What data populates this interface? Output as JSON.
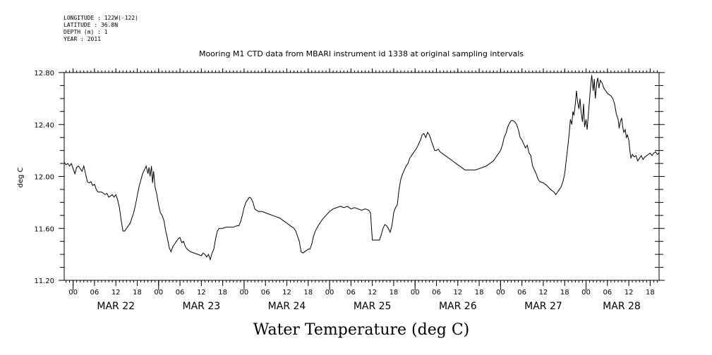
{
  "meta": {
    "longitude": "LONGITUDE : 122W(-122)",
    "latitude": "LATITUDE : 36.8N",
    "depth": "DEPTH (m) : 1",
    "year": "YEAR : 2011"
  },
  "chart_data": {
    "type": "line",
    "title": "Mooring M1 CTD data from MBARI instrument id 1338 at original sampling intervals",
    "bottom_title": "Water Temperature (deg C)",
    "ylabel": "deg C",
    "xlabel": "",
    "x_units": "hours since 2011-03-22 00:00",
    "xlim": [
      -2.5,
      164.5
    ],
    "ylim": [
      11.2,
      12.8
    ],
    "yticks": [
      11.2,
      11.6,
      12.0,
      12.4,
      12.8
    ],
    "ytick_labels": [
      "11.20",
      "11.60",
      "12.00",
      "12.40",
      "12.80"
    ],
    "xtick_hours": [
      0,
      6,
      12,
      18,
      24,
      30,
      36,
      42,
      48,
      54,
      60,
      66,
      72,
      78,
      84,
      90,
      96,
      102,
      108,
      114,
      120,
      126,
      132,
      138,
      144,
      150,
      156,
      162
    ],
    "xtick_labels": [
      "00",
      "06",
      "12",
      "18",
      "00",
      "06",
      "12",
      "18",
      "00",
      "06",
      "12",
      "18",
      "00",
      "06",
      "12",
      "18",
      "00",
      "06",
      "12",
      "18",
      "00",
      "06",
      "12",
      "18",
      "00",
      "06",
      "12",
      "18"
    ],
    "days": [
      {
        "label": "MAR 22",
        "hour": 12
      },
      {
        "label": "MAR 23",
        "hour": 36
      },
      {
        "label": "MAR 24",
        "hour": 60
      },
      {
        "label": "MAR 25",
        "hour": 84
      },
      {
        "label": "MAR 26",
        "hour": 108
      },
      {
        "label": "MAR 27",
        "hour": 132
      },
      {
        "label": "MAR 28",
        "hour": 154
      }
    ],
    "series": [
      {
        "color": "#000000",
        "points": [
          [
            -2.5,
            12.11
          ],
          [
            -2,
            12.09
          ],
          [
            -1.5,
            12.1
          ],
          [
            -1,
            12.08
          ],
          [
            -0.5,
            12.1
          ],
          [
            0,
            12.06
          ],
          [
            0.5,
            12.02
          ],
          [
            1,
            12.07
          ],
          [
            1.5,
            12.08
          ],
          [
            2,
            12.06
          ],
          [
            2.5,
            12.04
          ],
          [
            3,
            12.08
          ],
          [
            3.5,
            12.02
          ],
          [
            4,
            11.96
          ],
          [
            4.5,
            11.95
          ],
          [
            5,
            11.96
          ],
          [
            5.5,
            11.93
          ],
          [
            6,
            11.94
          ],
          [
            6.5,
            11.9
          ],
          [
            7,
            11.88
          ],
          [
            8,
            11.88
          ],
          [
            9,
            11.86
          ],
          [
            9.5,
            11.87
          ],
          [
            10,
            11.84
          ],
          [
            10.5,
            11.85
          ],
          [
            11,
            11.86
          ],
          [
            11.5,
            11.84
          ],
          [
            12,
            11.86
          ],
          [
            12.5,
            11.82
          ],
          [
            13,
            11.76
          ],
          [
            13.5,
            11.66
          ],
          [
            14,
            11.58
          ],
          [
            14.5,
            11.58
          ],
          [
            15,
            11.6
          ],
          [
            15.5,
            11.62
          ],
          [
            16,
            11.64
          ],
          [
            16.5,
            11.68
          ],
          [
            17,
            11.72
          ],
          [
            17.5,
            11.78
          ],
          [
            18,
            11.85
          ],
          [
            18.5,
            11.92
          ],
          [
            19,
            11.97
          ],
          [
            19.5,
            12.02
          ],
          [
            20,
            12.05
          ],
          [
            20.5,
            12.08
          ],
          [
            21,
            12.02
          ],
          [
            21.3,
            12.07
          ],
          [
            21.6,
            12.0
          ],
          [
            22,
            12.08
          ],
          [
            22.3,
            11.95
          ],
          [
            22.6,
            12.04
          ],
          [
            23,
            11.92
          ],
          [
            23.5,
            11.86
          ],
          [
            24,
            11.78
          ],
          [
            24.5,
            11.72
          ],
          [
            25,
            11.7
          ],
          [
            25.5,
            11.66
          ],
          [
            26,
            11.58
          ],
          [
            26.5,
            11.52
          ],
          [
            27,
            11.45
          ],
          [
            27.5,
            11.42
          ],
          [
            28,
            11.46
          ],
          [
            28.5,
            11.48
          ],
          [
            29,
            11.5
          ],
          [
            29.5,
            11.52
          ],
          [
            30,
            11.53
          ],
          [
            30.5,
            11.49
          ],
          [
            31,
            11.5
          ],
          [
            31.5,
            11.46
          ],
          [
            32,
            11.44
          ],
          [
            33,
            11.42
          ],
          [
            34,
            11.41
          ],
          [
            35,
            11.4
          ],
          [
            36,
            11.39
          ],
          [
            36.5,
            11.41
          ],
          [
            37,
            11.4
          ],
          [
            37.5,
            11.38
          ],
          [
            38,
            11.4
          ],
          [
            38.5,
            11.36
          ],
          [
            38.8,
            11.39
          ],
          [
            39,
            11.41
          ],
          [
            39.5,
            11.44
          ],
          [
            40,
            11.52
          ],
          [
            40.5,
            11.58
          ],
          [
            41,
            11.6
          ],
          [
            42,
            11.6
          ],
          [
            43,
            11.61
          ],
          [
            44,
            11.61
          ],
          [
            45,
            11.61
          ],
          [
            46,
            11.62
          ],
          [
            46.5,
            11.62
          ],
          [
            47,
            11.65
          ],
          [
            47.5,
            11.7
          ],
          [
            48,
            11.76
          ],
          [
            48.5,
            11.8
          ],
          [
            49,
            11.82
          ],
          [
            49.5,
            11.84
          ],
          [
            50,
            11.83
          ],
          [
            50.5,
            11.8
          ],
          [
            51,
            11.75
          ],
          [
            51.5,
            11.74
          ],
          [
            52,
            11.73
          ],
          [
            53,
            11.73
          ],
          [
            54,
            11.72
          ],
          [
            55,
            11.71
          ],
          [
            56,
            11.7
          ],
          [
            57,
            11.69
          ],
          [
            58,
            11.68
          ],
          [
            59,
            11.66
          ],
          [
            60,
            11.64
          ],
          [
            61,
            11.62
          ],
          [
            62,
            11.6
          ],
          [
            62.5,
            11.58
          ],
          [
            63,
            11.54
          ],
          [
            63.5,
            11.5
          ],
          [
            64,
            11.42
          ],
          [
            64.5,
            11.41
          ],
          [
            65,
            11.42
          ],
          [
            65.5,
            11.43
          ],
          [
            66,
            11.44
          ],
          [
            66.5,
            11.44
          ],
          [
            67,
            11.48
          ],
          [
            67.5,
            11.54
          ],
          [
            68,
            11.58
          ],
          [
            69,
            11.63
          ],
          [
            70,
            11.67
          ],
          [
            71,
            11.7
          ],
          [
            72,
            11.73
          ],
          [
            73,
            11.75
          ],
          [
            74,
            11.76
          ],
          [
            75,
            11.77
          ],
          [
            76,
            11.76
          ],
          [
            77,
            11.77
          ],
          [
            78,
            11.75
          ],
          [
            79,
            11.76
          ],
          [
            80,
            11.75
          ],
          [
            81,
            11.74
          ],
          [
            82,
            11.75
          ],
          [
            83,
            11.74
          ],
          [
            83.5,
            11.72
          ],
          [
            84,
            11.51
          ],
          [
            85,
            11.51
          ],
          [
            86,
            11.51
          ],
          [
            86.5,
            11.55
          ],
          [
            87,
            11.6
          ],
          [
            87.5,
            11.63
          ],
          [
            88,
            11.62
          ],
          [
            88.5,
            11.6
          ],
          [
            89,
            11.57
          ],
          [
            89.5,
            11.62
          ],
          [
            90,
            11.72
          ],
          [
            90.5,
            11.76
          ],
          [
            91,
            11.78
          ],
          [
            91.5,
            11.9
          ],
          [
            92,
            11.98
          ],
          [
            92.5,
            12.02
          ],
          [
            93,
            12.05
          ],
          [
            93.5,
            12.08
          ],
          [
            94,
            12.1
          ],
          [
            94.5,
            12.14
          ],
          [
            95,
            12.16
          ],
          [
            95.5,
            12.18
          ],
          [
            96,
            12.2
          ],
          [
            96.5,
            12.22
          ],
          [
            97,
            12.25
          ],
          [
            97.5,
            12.28
          ],
          [
            98,
            12.32
          ],
          [
            98.5,
            12.33
          ],
          [
            99,
            12.3
          ],
          [
            99.5,
            12.34
          ],
          [
            100,
            12.32
          ],
          [
            100.5,
            12.28
          ],
          [
            101,
            12.24
          ],
          [
            101.5,
            12.2
          ],
          [
            102,
            12.2
          ],
          [
            102.5,
            12.21
          ],
          [
            103,
            12.19
          ],
          [
            104,
            12.17
          ],
          [
            105,
            12.15
          ],
          [
            106,
            12.13
          ],
          [
            107,
            12.11
          ],
          [
            108,
            12.09
          ],
          [
            109,
            12.07
          ],
          [
            110,
            12.05
          ],
          [
            111,
            12.05
          ],
          [
            112,
            12.05
          ],
          [
            113,
            12.05
          ],
          [
            114,
            12.06
          ],
          [
            115,
            12.07
          ],
          [
            116,
            12.08
          ],
          [
            117,
            12.1
          ],
          [
            118,
            12.12
          ],
          [
            119,
            12.16
          ],
          [
            120,
            12.2
          ],
          [
            120.5,
            12.24
          ],
          [
            121,
            12.3
          ],
          [
            121.5,
            12.33
          ],
          [
            122,
            12.38
          ],
          [
            122.5,
            12.41
          ],
          [
            123,
            12.43
          ],
          [
            123.5,
            12.43
          ],
          [
            124,
            12.42
          ],
          [
            124.5,
            12.4
          ],
          [
            125,
            12.36
          ],
          [
            125.5,
            12.3
          ],
          [
            126,
            12.28
          ],
          [
            126.5,
            12.25
          ],
          [
            127,
            12.22
          ],
          [
            127.5,
            12.24
          ],
          [
            128,
            12.18
          ],
          [
            128.5,
            12.16
          ],
          [
            129,
            12.08
          ],
          [
            129.5,
            12.05
          ],
          [
            130,
            12.02
          ],
          [
            130.5,
            11.98
          ],
          [
            131,
            11.96
          ],
          [
            132,
            11.95
          ],
          [
            133,
            11.93
          ],
          [
            134,
            11.9
          ],
          [
            135,
            11.88
          ],
          [
            135.5,
            11.86
          ],
          [
            136,
            11.88
          ],
          [
            136.5,
            11.9
          ],
          [
            137,
            11.92
          ],
          [
            137.5,
            11.96
          ],
          [
            138,
            12.02
          ],
          [
            138.5,
            12.14
          ],
          [
            139,
            12.26
          ],
          [
            139.3,
            12.34
          ],
          [
            139.6,
            12.44
          ],
          [
            140,
            12.4
          ],
          [
            140.3,
            12.5
          ],
          [
            140.6,
            12.47
          ],
          [
            141,
            12.56
          ],
          [
            141.3,
            12.66
          ],
          [
            141.6,
            12.58
          ],
          [
            142,
            12.52
          ],
          [
            142.3,
            12.6
          ],
          [
            142.6,
            12.5
          ],
          [
            143,
            12.42
          ],
          [
            143.3,
            12.56
          ],
          [
            143.6,
            12.38
          ],
          [
            144,
            12.44
          ],
          [
            144.3,
            12.36
          ],
          [
            144.6,
            12.46
          ],
          [
            145,
            12.6
          ],
          [
            145.3,
            12.7
          ],
          [
            145.6,
            12.78
          ],
          [
            146,
            12.66
          ],
          [
            146.3,
            12.75
          ],
          [
            146.6,
            12.6
          ],
          [
            147,
            12.72
          ],
          [
            147.3,
            12.76
          ],
          [
            147.6,
            12.68
          ],
          [
            148,
            12.74
          ],
          [
            148.5,
            12.72
          ],
          [
            149,
            12.68
          ],
          [
            150,
            12.64
          ],
          [
            150.5,
            12.63
          ],
          [
            151,
            12.62
          ],
          [
            151.5,
            12.6
          ],
          [
            152,
            12.56
          ],
          [
            152.5,
            12.48
          ],
          [
            153,
            12.44
          ],
          [
            153.3,
            12.37
          ],
          [
            153.6,
            12.42
          ],
          [
            154,
            12.45
          ],
          [
            154.3,
            12.38
          ],
          [
            154.6,
            12.34
          ],
          [
            155,
            12.36
          ],
          [
            155.3,
            12.3
          ],
          [
            155.6,
            12.32
          ],
          [
            156,
            12.28
          ],
          [
            156.3,
            12.2
          ],
          [
            156.6,
            12.14
          ],
          [
            157,
            12.17
          ],
          [
            157.5,
            12.15
          ],
          [
            158,
            12.16
          ],
          [
            158.5,
            12.12
          ],
          [
            159,
            12.14
          ],
          [
            159.5,
            12.16
          ],
          [
            160,
            12.13
          ],
          [
            160.5,
            12.15
          ],
          [
            161,
            12.16
          ],
          [
            161.5,
            12.17
          ],
          [
            162,
            12.18
          ],
          [
            162.5,
            12.16
          ],
          [
            163,
            12.18
          ],
          [
            163.5,
            12.19
          ],
          [
            164,
            12.17
          ],
          [
            164.5,
            12.18
          ]
        ]
      }
    ]
  }
}
